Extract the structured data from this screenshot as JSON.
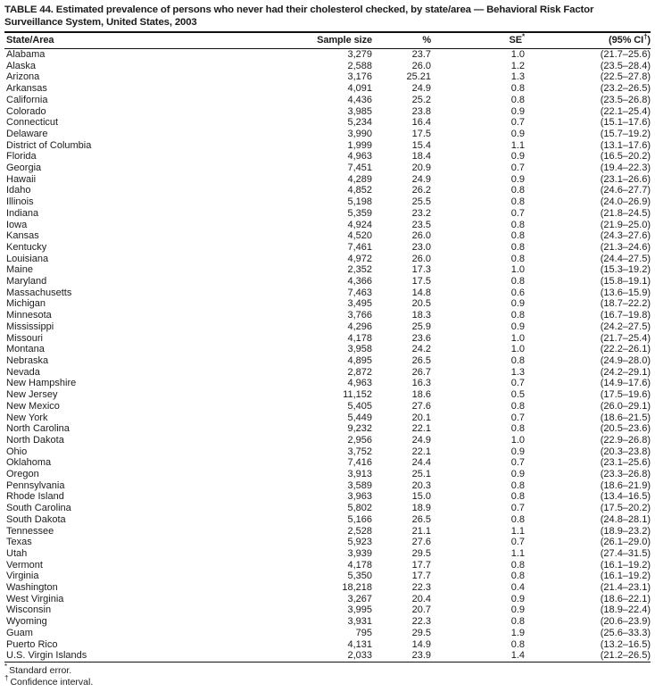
{
  "title": {
    "line1": "TABLE 44. Estimated prevalence of persons who never had their cholesterol checked, by state/area — Behavioral Risk Factor",
    "line2": "Surveillance System, United States, 2003"
  },
  "columns": [
    {
      "label": "State/Area",
      "sup": "",
      "after": ""
    },
    {
      "label": "Sample size",
      "sup": "",
      "after": ""
    },
    {
      "label": "%",
      "sup": "",
      "after": ""
    },
    {
      "label": "SE",
      "sup": "*",
      "after": ""
    },
    {
      "label": "(95% CI",
      "sup": "†",
      "after": ")"
    }
  ],
  "rows": [
    [
      "Alabama",
      "3,279",
      "23.7",
      "1.0",
      "(21.7–25.6)"
    ],
    [
      "Alaska",
      "2,588",
      "26.0",
      "1.2",
      "(23.5–28.4)"
    ],
    [
      "Arizona",
      "3,176",
      "25.21",
      "1.3",
      "(22.5–27.8)"
    ],
    [
      "Arkansas",
      "4,091",
      "24.9",
      "0.8",
      "(23.2–26.5)"
    ],
    [
      "California",
      "4,436",
      "25.2",
      "0.8",
      "(23.5–26.8)"
    ],
    [
      "Colorado",
      "3,985",
      "23.8",
      "0.9",
      "(22.1–25.4)"
    ],
    [
      "Connecticut",
      "5,234",
      "16.4",
      "0.7",
      "(15.1–17.6)"
    ],
    [
      "Delaware",
      "3,990",
      "17.5",
      "0.9",
      "(15.7–19.2)"
    ],
    [
      "District of Columbia",
      "1,999",
      "15.4",
      "1.1",
      "(13.1–17.6)"
    ],
    [
      "Florida",
      "4,963",
      "18.4",
      "0.9",
      "(16.5–20.2)"
    ],
    [
      "Georgia",
      "7,451",
      "20.9",
      "0.7",
      "(19.4–22.3)"
    ],
    [
      "Hawaii",
      "4,289",
      "24.9",
      "0.9",
      "(23.1–26.6)"
    ],
    [
      "Idaho",
      "4,852",
      "26.2",
      "0.8",
      "(24.6–27.7)"
    ],
    [
      "Illinois",
      "5,198",
      "25.5",
      "0.8",
      "(24.0–26.9)"
    ],
    [
      "Indiana",
      "5,359",
      "23.2",
      "0.7",
      "(21.8–24.5)"
    ],
    [
      "Iowa",
      "4,924",
      "23.5",
      "0.8",
      "(21.9–25.0)"
    ],
    [
      "Kansas",
      "4,520",
      "26.0",
      "0.8",
      "(24.3–27.6)"
    ],
    [
      "Kentucky",
      "7,461",
      "23.0",
      "0.8",
      "(21.3–24.6)"
    ],
    [
      "Louisiana",
      "4,972",
      "26.0",
      "0.8",
      "(24.4–27.5)"
    ],
    [
      "Maine",
      "2,352",
      "17.3",
      "1.0",
      "(15.3–19.2)"
    ],
    [
      "Maryland",
      "4,366",
      "17.5",
      "0.8",
      "(15.8–19.1)"
    ],
    [
      "Massachusetts",
      "7,463",
      "14.8",
      "0.6",
      "(13.6–15.9)"
    ],
    [
      "Michigan",
      "3,495",
      "20.5",
      "0.9",
      "(18.7–22.2)"
    ],
    [
      "Minnesota",
      "3,766",
      "18.3",
      "0.8",
      "(16.7–19.8)"
    ],
    [
      "Mississippi",
      "4,296",
      "25.9",
      "0.9",
      "(24.2–27.5)"
    ],
    [
      "Missouri",
      "4,178",
      "23.6",
      "1.0",
      "(21.7–25.4)"
    ],
    [
      "Montana",
      "3,958",
      "24.2",
      "1.0",
      "(22.2–26.1)"
    ],
    [
      "Nebraska",
      "4,895",
      "26.5",
      "0.8",
      "(24.9–28.0)"
    ],
    [
      "Nevada",
      "2,872",
      "26.7",
      "1.3",
      "(24.2–29.1)"
    ],
    [
      "New Hampshire",
      "4,963",
      "16.3",
      "0.7",
      "(14.9–17.6)"
    ],
    [
      "New Jersey",
      "11,152",
      "18.6",
      "0.5",
      "(17.5–19.6)"
    ],
    [
      "New Mexico",
      "5,405",
      "27.6",
      "0.8",
      "(26.0–29.1)"
    ],
    [
      "New York",
      "5,449",
      "20.1",
      "0.7",
      "(18.6–21.5)"
    ],
    [
      "North Carolina",
      "9,232",
      "22.1",
      "0.8",
      "(20.5–23.6)"
    ],
    [
      "North Dakota",
      "2,956",
      "24.9",
      "1.0",
      "(22.9–26.8)"
    ],
    [
      "Ohio",
      "3,752",
      "22.1",
      "0.9",
      "(20.3–23.8)"
    ],
    [
      "Oklahoma",
      "7,416",
      "24.4",
      "0.7",
      "(23.1–25.6)"
    ],
    [
      "Oregon",
      "3,913",
      "25.1",
      "0.9",
      "(23.3–26.8)"
    ],
    [
      "Pennsylvania",
      "3,589",
      "20.3",
      "0.8",
      "(18.6–21.9)"
    ],
    [
      "Rhode Island",
      "3,963",
      "15.0",
      "0.8",
      "(13.4–16.5)"
    ],
    [
      "South Carolina",
      "5,802",
      "18.9",
      "0.7",
      "(17.5–20.2)"
    ],
    [
      "South Dakota",
      "5,166",
      "26.5",
      "0.8",
      "(24.8–28.1)"
    ],
    [
      "Tennessee",
      "2,528",
      "21.1",
      "1.1",
      "(18.9–23.2)"
    ],
    [
      "Texas",
      "5,923",
      "27.6",
      "0.7",
      "(26.1–29.0)"
    ],
    [
      "Utah",
      "3,939",
      "29.5",
      "1.1",
      "(27.4–31.5)"
    ],
    [
      "Vermont",
      "4,178",
      "17.7",
      "0.8",
      "(16.1–19.2)"
    ],
    [
      "Virginia",
      "5,350",
      "17.7",
      "0.8",
      "(16.1–19.2)"
    ],
    [
      "Washington",
      "18,218",
      "22.3",
      "0.4",
      "(21.4–23.1)"
    ],
    [
      "West Virginia",
      "3,267",
      "20.4",
      "0.9",
      "(18.6–22.1)"
    ],
    [
      "Wisconsin",
      "3,995",
      "20.7",
      "0.9",
      "(18.9–22.4)"
    ],
    [
      "Wyoming",
      "3,931",
      "22.3",
      "0.8",
      "(20.6–23.9)"
    ],
    [
      "Guam",
      "795",
      "29.5",
      "1.9",
      "(25.6–33.3)"
    ],
    [
      "Puerto Rico",
      "4,131",
      "14.9",
      "0.8",
      "(13.2–16.5)"
    ],
    [
      "U.S. Virgin Islands",
      "2,033",
      "23.9",
      "1.4",
      "(21.2–26.5)"
    ]
  ],
  "footnotes": [
    {
      "marker": "*",
      "text": "Standard error."
    },
    {
      "marker": "†",
      "text": "Confidence interval."
    }
  ]
}
